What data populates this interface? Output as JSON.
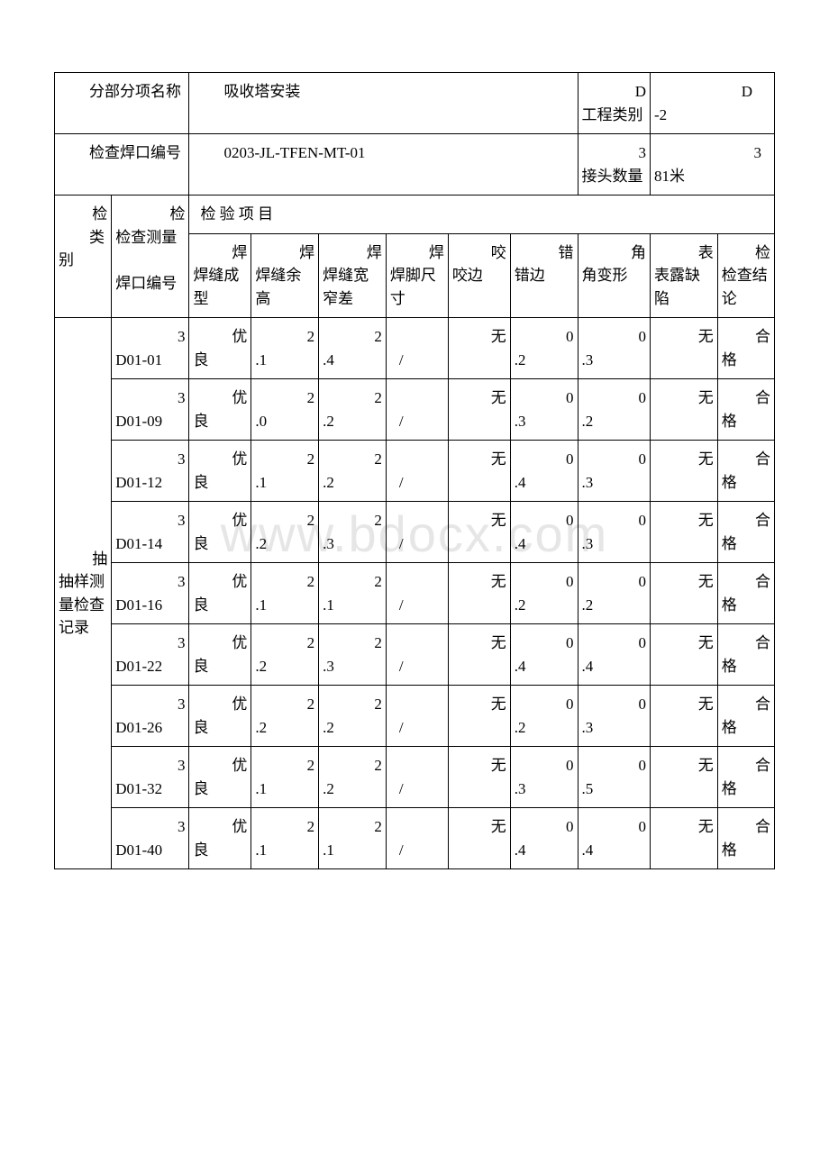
{
  "watermark": "www.bdocx.com",
  "header": {
    "section_name_label": "分部分项名称",
    "section_name_value": "吸收塔安装",
    "proj_class_label": "工程类别",
    "proj_class_value_prefix": "D",
    "proj_class_value": "-2",
    "weld_no_label": "检查焊口编号",
    "weld_no_value": "0203-JL-TFEN-MT-01",
    "joint_qty_label": "接头数量",
    "joint_qty_value_prefix": "3",
    "joint_qty_value": "81米"
  },
  "columns": {
    "group_label": "类别",
    "measure_label": "检查测量",
    "weld_no_label": "焊口编号",
    "inspect_items_label": "检 验 项 目",
    "c1": "焊缝成型",
    "c2": "焊缝余高",
    "c3": "焊缝宽窄差",
    "c4": "焊脚尺寸",
    "c5": "咬边",
    "c6": "错边",
    "c7": "角变形",
    "c8": "表露缺陷",
    "c9": "检查结论"
  },
  "group_label": "抽样测量检查记录",
  "rows": [
    {
      "prefix": "3",
      "id": "D01-01",
      "form": "优良",
      "rh_p": "2",
      "rh": ".1",
      "wd_p": "2",
      "wd": ".4",
      "leg": "/",
      "bite": "无",
      "mis_p": "0",
      "mis": ".2",
      "ang_p": "0",
      "ang": ".3",
      "def": "无",
      "res_p": "合",
      "res": "格"
    },
    {
      "prefix": "3",
      "id": "D01-09",
      "form": "优良",
      "rh_p": "2",
      "rh": ".0",
      "wd_p": "2",
      "wd": ".2",
      "leg": "/",
      "bite": "无",
      "mis_p": "0",
      "mis": ".3",
      "ang_p": "0",
      "ang": ".2",
      "def": "无",
      "res_p": "合",
      "res": "格"
    },
    {
      "prefix": "3",
      "id": "D01-12",
      "form": "优良",
      "rh_p": "2",
      "rh": ".1",
      "wd_p": "2",
      "wd": ".2",
      "leg": "/",
      "bite": "无",
      "mis_p": "0",
      "mis": ".4",
      "ang_p": "0",
      "ang": ".3",
      "def": "无",
      "res_p": "合",
      "res": "格"
    },
    {
      "prefix": "3",
      "id": "D01-14",
      "form": "优良",
      "rh_p": "2",
      "rh": ".2",
      "wd_p": "2",
      "wd": ".3",
      "leg": "/",
      "bite": "无",
      "mis_p": "0",
      "mis": ".4",
      "ang_p": "0",
      "ang": ".3",
      "def": "无",
      "res_p": "合",
      "res": "格"
    },
    {
      "prefix": "3",
      "id": "D01-16",
      "form": "优良",
      "rh_p": "2",
      "rh": ".1",
      "wd_p": "2",
      "wd": ".1",
      "leg": "/",
      "bite": "无",
      "mis_p": "0",
      "mis": ".2",
      "ang_p": "0",
      "ang": ".2",
      "def": "无",
      "res_p": "合",
      "res": "格"
    },
    {
      "prefix": "3",
      "id": "D01-22",
      "form": "优良",
      "rh_p": "2",
      "rh": ".2",
      "wd_p": "2",
      "wd": ".3",
      "leg": "/",
      "bite": "无",
      "mis_p": "0",
      "mis": ".4",
      "ang_p": "0",
      "ang": ".4",
      "def": "无",
      "res_p": "合",
      "res": "格"
    },
    {
      "prefix": "3",
      "id": "D01-26",
      "form": "优良",
      "rh_p": "2",
      "rh": ".2",
      "wd_p": "2",
      "wd": ".2",
      "leg": "/",
      "bite": "无",
      "mis_p": "0",
      "mis": ".2",
      "ang_p": "0",
      "ang": ".3",
      "def": "无",
      "res_p": "合",
      "res": "格"
    },
    {
      "prefix": "3",
      "id": "D01-32",
      "form": "优良",
      "rh_p": "2",
      "rh": ".1",
      "wd_p": "2",
      "wd": ".2",
      "leg": "/",
      "bite": "无",
      "mis_p": "0",
      "mis": ".3",
      "ang_p": "0",
      "ang": ".5",
      "def": "无",
      "res_p": "合",
      "res": "格"
    },
    {
      "prefix": "3",
      "id": "D01-40",
      "form": "优良",
      "rh_p": "2",
      "rh": ".1",
      "wd_p": "2",
      "wd": ".1",
      "leg": "/",
      "bite": "无",
      "mis_p": "0",
      "mis": ".4",
      "ang_p": "0",
      "ang": ".4",
      "def": "无",
      "res_p": "合",
      "res": "格"
    }
  ]
}
